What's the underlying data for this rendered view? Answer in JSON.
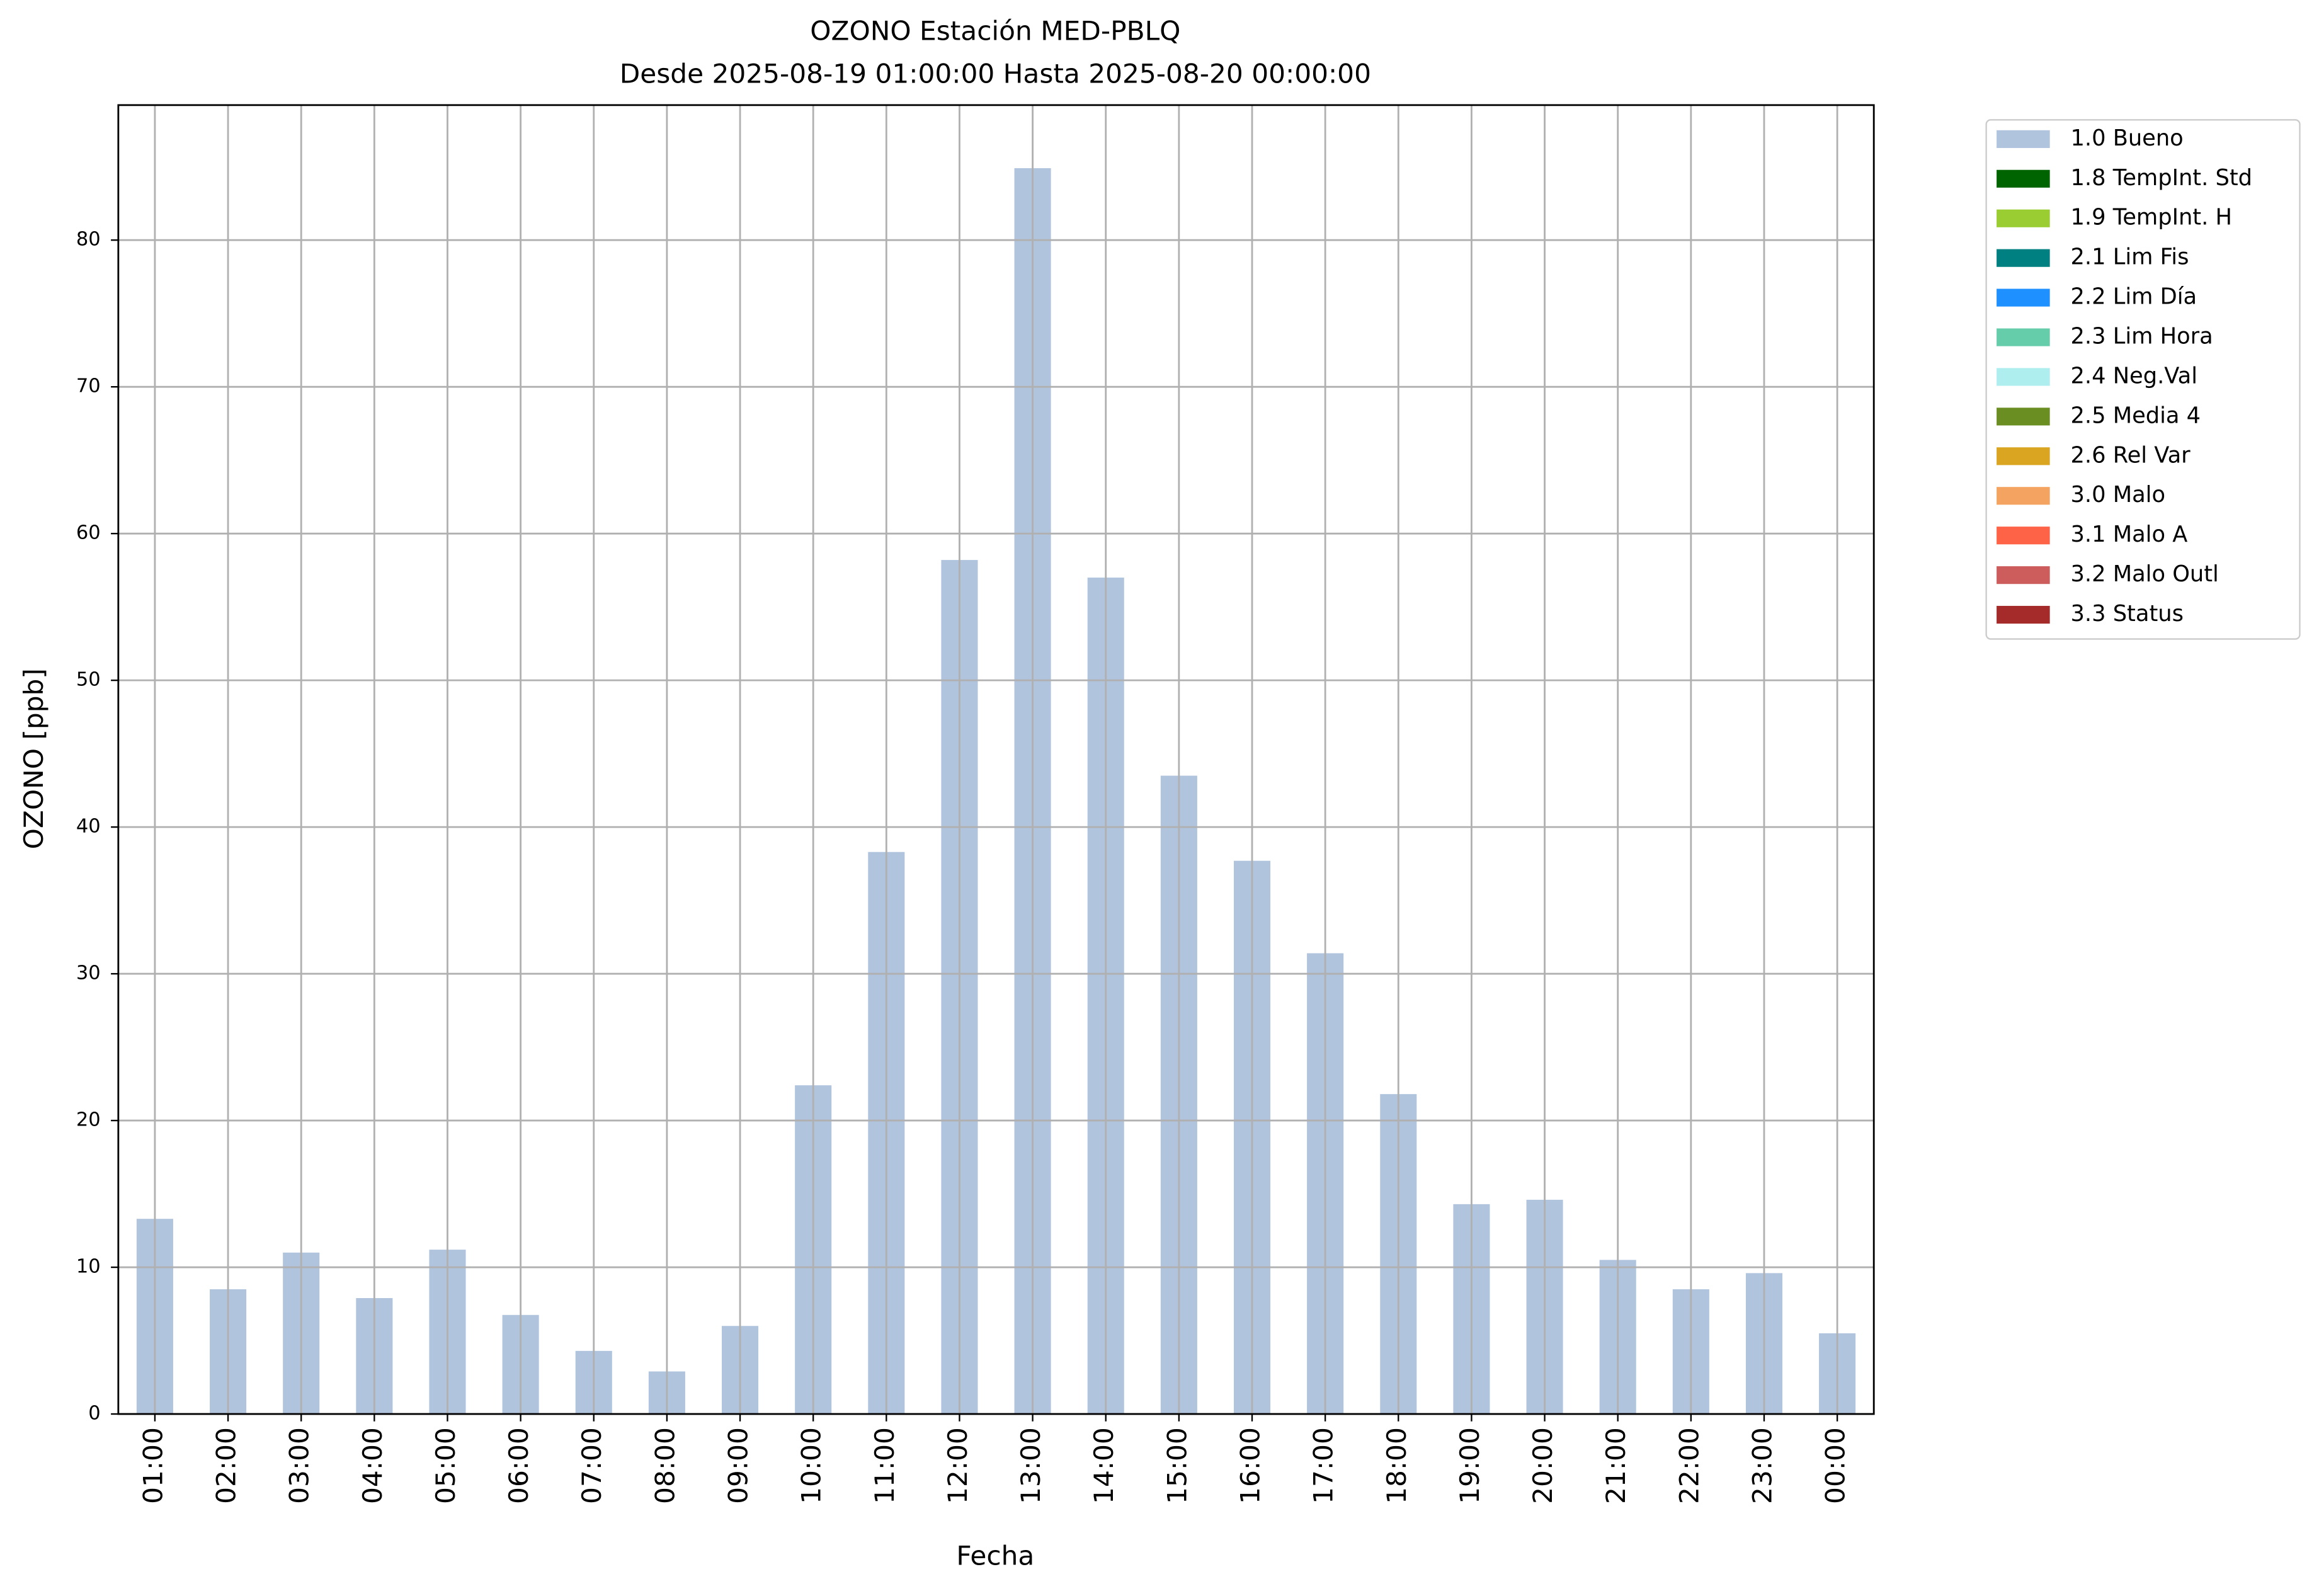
{
  "chart_data": {
    "type": "bar",
    "title": "OZONO Estación MED-PBLQ",
    "subtitle": "Desde 2025-08-19 01:00:00 Hasta 2025-08-20 00:00:00",
    "x_label": "Fecha",
    "y_label": "OZONO [ppb]",
    "categories": [
      "01:00",
      "02:00",
      "03:00",
      "04:00",
      "05:00",
      "06:00",
      "07:00",
      "08:00",
      "09:00",
      "10:00",
      "11:00",
      "12:00",
      "13:00",
      "14:00",
      "15:00",
      "16:00",
      "17:00",
      "18:00",
      "19:00",
      "20:00",
      "21:00",
      "22:00",
      "23:00",
      "00:00"
    ],
    "series": [
      {
        "name": "1.0 Bueno",
        "color": "#b0c4de",
        "values": [
          13.3,
          8.5,
          11.0,
          7.9,
          11.2,
          6.75,
          4.3,
          2.9,
          6.0,
          22.4,
          38.3,
          58.2,
          84.9,
          57.0,
          43.5,
          37.7,
          31.4,
          21.8,
          14.3,
          14.6,
          10.5,
          8.5,
          9.6,
          5.5
        ]
      },
      {
        "name": "1.8 TempInt. Std",
        "color": "#006400"
      },
      {
        "name": "1.9 TempInt. H",
        "color": "#9acd32"
      },
      {
        "name": "2.1 Lim Fis",
        "color": "#008080"
      },
      {
        "name": "2.2 Lim Día",
        "color": "#1e90ff"
      },
      {
        "name": "2.3 Lim Hora",
        "color": "#66cdaa"
      },
      {
        "name": "2.4 Neg.Val",
        "color": "#afeeee"
      },
      {
        "name": "2.5 Media 4",
        "color": "#6b8e23"
      },
      {
        "name": "2.6 Rel Var",
        "color": "#daa520"
      },
      {
        "name": "3.0 Malo",
        "color": "#f4a460"
      },
      {
        "name": "3.1 Malo A",
        "color": "#ff6347"
      },
      {
        "name": "3.2 Malo Outl",
        "color": "#cd5c5c"
      },
      {
        "name": "3.3 Status",
        "color": "#a52a2a"
      }
    ],
    "ylim": [
      0,
      89.2
    ],
    "yticks": [
      0,
      10,
      20,
      30,
      40,
      50,
      60,
      70,
      80
    ],
    "grid": true,
    "legend": "outside-upper-right"
  }
}
